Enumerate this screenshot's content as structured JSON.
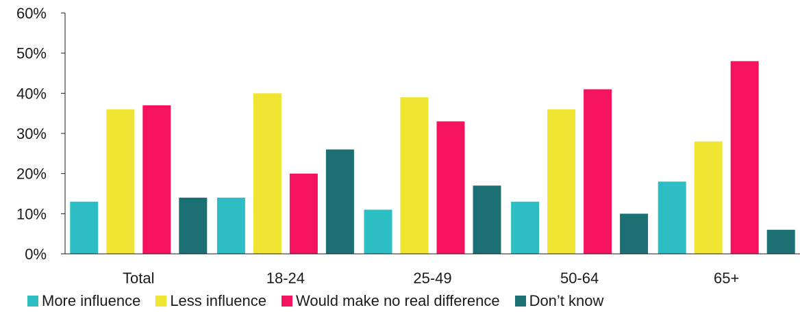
{
  "chart_data": {
    "type": "bar",
    "categories": [
      "Total",
      "18-24",
      "25-49",
      "50-64",
      "65+"
    ],
    "series": [
      {
        "name": "More influence",
        "color": "#2dbec4",
        "values": [
          13,
          14,
          11,
          13,
          18
        ]
      },
      {
        "name": "Less influence",
        "color": "#f0e532",
        "values": [
          36,
          40,
          39,
          36,
          28
        ]
      },
      {
        "name": "Would make no real difference",
        "color": "#f5125f",
        "values": [
          37,
          20,
          33,
          41,
          48
        ]
      },
      {
        "name": "Don’t know",
        "color": "#1c7074",
        "values": [
          14,
          26,
          17,
          10,
          6
        ]
      }
    ],
    "y_ticks": [
      "0%",
      "10%",
      "20%",
      "30%",
      "40%",
      "50%",
      "60%"
    ],
    "ylim": [
      0,
      60
    ],
    "y_unit": "%",
    "grid": false,
    "legend_position": "bottom"
  }
}
